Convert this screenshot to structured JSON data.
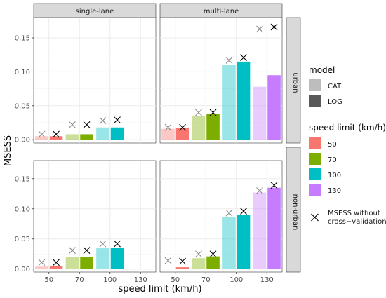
{
  "chart_data": {
    "type": "bar",
    "y_label": "MSESS",
    "x_label": "speed limit (km/h)",
    "column_strips": [
      "single-lane",
      "multi-lane"
    ],
    "row_strips": [
      "urban",
      "non-urban"
    ],
    "categories": [
      "50",
      "70",
      "100",
      "130"
    ],
    "ylim": [
      -0.005,
      0.18
    ],
    "y_ticks": [
      0,
      0.05,
      0.1,
      0.15
    ],
    "y_tick_labels": [
      "0.00",
      "0.05",
      "0.10",
      "0.15"
    ],
    "grid": true,
    "legend_position": "right",
    "legend": {
      "model_title": "model",
      "model_entries": [
        "CAT",
        "LOG"
      ],
      "speed_title": "speed limit (km/h)",
      "speed_entries": [
        "50",
        "70",
        "100",
        "130"
      ],
      "marker_label_line1": "MSESS without",
      "marker_label_line2": "cross−validation"
    },
    "colors": {
      "50": "#f8766d",
      "70": "#7cae00",
      "100": "#00bfc4",
      "130": "#c77cff",
      "CAT_alpha": 0.4,
      "panel_bg": "#ffffff",
      "grid": "#ebebeb",
      "strip_bg": "#d9d9d9",
      "legend_cat": "#bdbdbd",
      "legend_log": "#595959"
    },
    "panels": [
      {
        "row": "urban",
        "col": "single-lane",
        "bars": [
          {
            "speed": "50",
            "cat": 0.005,
            "log": 0.005,
            "cat_nocv": 0.008,
            "log_nocv": 0.008
          },
          {
            "speed": "70",
            "cat": 0.008,
            "log": 0.008,
            "cat_nocv": 0.022,
            "log_nocv": 0.022
          },
          {
            "speed": "100",
            "cat": 0.018,
            "log": 0.018,
            "cat_nocv": 0.028,
            "log_nocv": 0.029
          }
        ]
      },
      {
        "row": "urban",
        "col": "multi-lane",
        "bars": [
          {
            "speed": "50",
            "cat": 0.016,
            "log": 0.017,
            "cat_nocv": 0.018,
            "log_nocv": 0.018
          },
          {
            "speed": "70",
            "cat": 0.035,
            "log": 0.038,
            "cat_nocv": 0.04,
            "log_nocv": 0.04
          },
          {
            "speed": "100",
            "cat": 0.11,
            "log": 0.115,
            "cat_nocv": 0.117,
            "log_nocv": 0.121
          },
          {
            "speed": "130",
            "cat": 0.078,
            "log": 0.095,
            "cat_nocv": 0.163,
            "log_nocv": 0.166
          }
        ]
      },
      {
        "row": "non-urban",
        "col": "single-lane",
        "bars": [
          {
            "speed": "50",
            "cat": 0.004,
            "log": 0.005,
            "cat_nocv": 0.011,
            "log_nocv": 0.011
          },
          {
            "speed": "70",
            "cat": 0.02,
            "log": 0.02,
            "cat_nocv": 0.031,
            "log_nocv": 0.031
          },
          {
            "speed": "100",
            "cat": 0.035,
            "log": 0.035,
            "cat_nocv": 0.042,
            "log_nocv": 0.042
          }
        ]
      },
      {
        "row": "non-urban",
        "col": "multi-lane",
        "bars": [
          {
            "speed": "50",
            "cat": 0.0,
            "log": 0.003,
            "cat_nocv": 0.014,
            "log_nocv": 0.013
          },
          {
            "speed": "70",
            "cat": 0.018,
            "log": 0.021,
            "cat_nocv": 0.025,
            "log_nocv": 0.025
          },
          {
            "speed": "100",
            "cat": 0.087,
            "log": 0.09,
            "cat_nocv": 0.093,
            "log_nocv": 0.096
          },
          {
            "speed": "130",
            "cat": 0.127,
            "log": 0.135,
            "cat_nocv": 0.13,
            "log_nocv": 0.139
          }
        ]
      }
    ]
  }
}
